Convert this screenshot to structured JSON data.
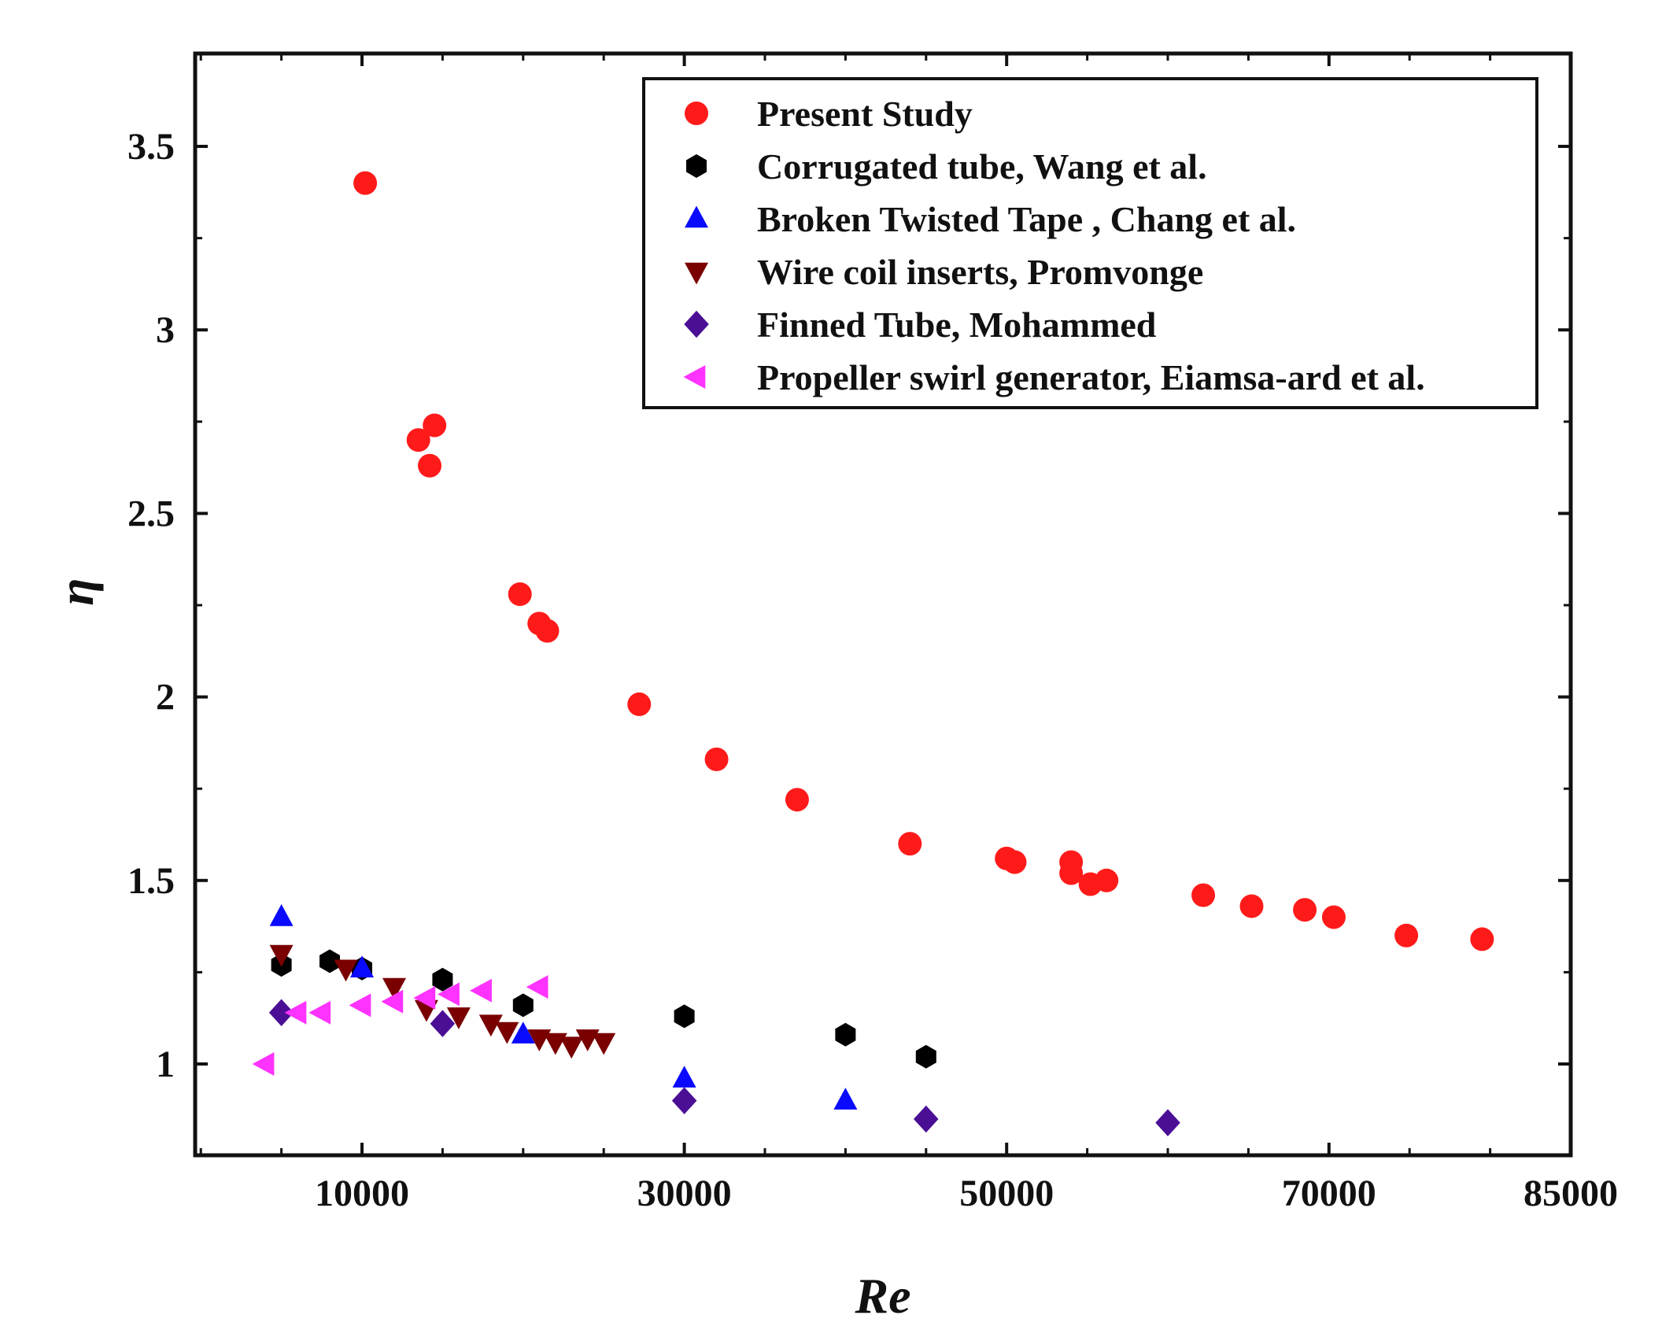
{
  "chart_data": {
    "type": "scatter",
    "xlabel": "Re",
    "ylabel": "η",
    "xlim": [
      0,
      85000
    ],
    "ylim": [
      0.75,
      3.75
    ],
    "xticks": [
      10000,
      30000,
      50000,
      70000,
      85000
    ],
    "xtick_labels": [
      "10000",
      "30000",
      "50000",
      "70000",
      "85000"
    ],
    "yticks": [
      1,
      1.5,
      2,
      2.5,
      3,
      3.5
    ],
    "ytick_labels": [
      "1",
      "1.5",
      "2",
      "2.5",
      "3",
      "3.5"
    ],
    "legend_position": "top-right",
    "series": [
      {
        "name": "Present Study",
        "marker": "circle",
        "color": "#ff1a1a",
        "x": [
          10200,
          13500,
          14200,
          14500,
          19800,
          21000,
          21500,
          27200,
          32000,
          37000,
          44000,
          50000,
          50500,
          54000,
          54000,
          55200,
          56200,
          62200,
          65200,
          68500,
          70300,
          74800,
          79500
        ],
        "y": [
          3.4,
          2.7,
          2.63,
          2.74,
          2.28,
          2.2,
          2.18,
          1.98,
          1.83,
          1.72,
          1.6,
          1.56,
          1.55,
          1.55,
          1.52,
          1.49,
          1.5,
          1.46,
          1.43,
          1.42,
          1.4,
          1.35,
          1.34
        ]
      },
      {
        "name": "Corrugated tube, Wang et al.",
        "marker": "hexagon",
        "color": "#000000",
        "x": [
          5000,
          8000,
          10000,
          15000,
          20000,
          30000,
          40000,
          45000
        ],
        "y": [
          1.27,
          1.28,
          1.26,
          1.23,
          1.16,
          1.13,
          1.08,
          1.02
        ]
      },
      {
        "name": "Broken Twisted Tape , Chang et al.",
        "marker": "triangle-up",
        "color": "#0a0aff",
        "x": [
          5000,
          10000,
          20000,
          30000,
          40000
        ],
        "y": [
          1.4,
          1.26,
          1.08,
          0.96,
          0.9
        ]
      },
      {
        "name": "Wire coil inserts, Promvonge",
        "marker": "triangle-down",
        "color": "#7a0000",
        "x": [
          5000,
          9000,
          12000,
          14000,
          16000,
          18000,
          19000,
          21000,
          22000,
          23000,
          24000,
          25000
        ],
        "y": [
          1.3,
          1.26,
          1.21,
          1.15,
          1.13,
          1.11,
          1.09,
          1.07,
          1.06,
          1.05,
          1.07,
          1.06
        ]
      },
      {
        "name": "Finned Tube, Mohammed",
        "marker": "diamond",
        "color": "#4b0f96",
        "x": [
          5000,
          15000,
          30000,
          45000,
          60000
        ],
        "y": [
          1.14,
          1.11,
          0.9,
          0.85,
          0.84
        ]
      },
      {
        "name": "Propeller swirl generator, Eiamsa-ard et al.",
        "marker": "triangle-left",
        "color": "#ff33ff",
        "x": [
          4000,
          6000,
          7500,
          10000,
          12000,
          14000,
          15500,
          17500,
          21000
        ],
        "y": [
          1.0,
          1.14,
          1.14,
          1.16,
          1.17,
          1.18,
          1.19,
          1.2,
          1.21
        ]
      }
    ]
  }
}
